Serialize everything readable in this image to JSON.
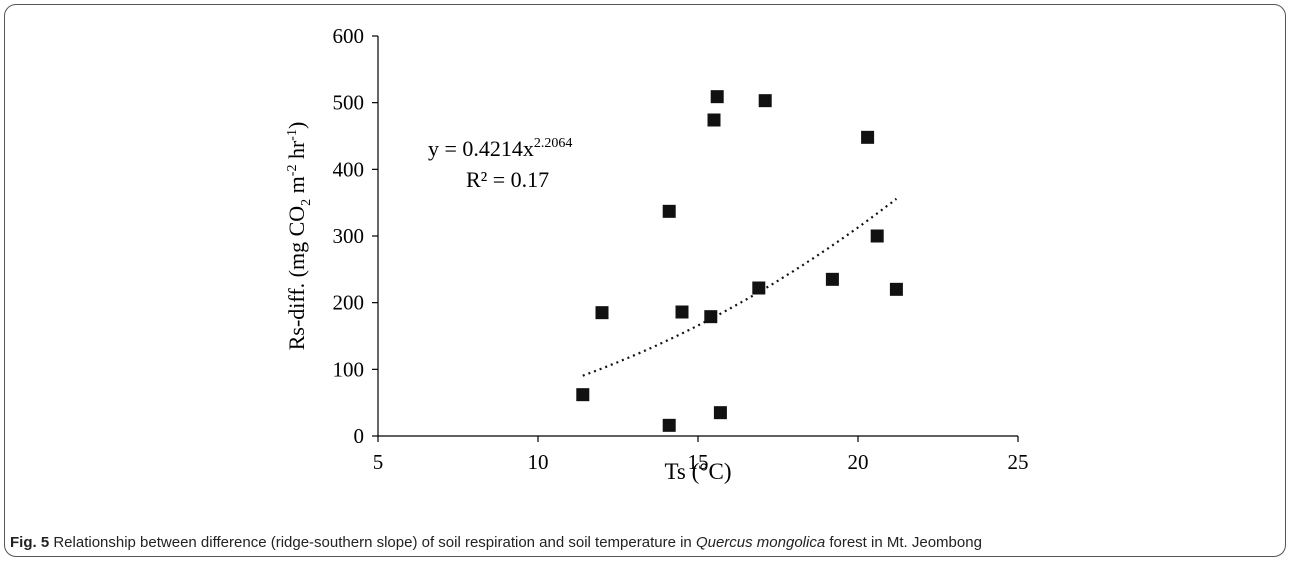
{
  "chart_data": {
    "type": "scatter",
    "xlabel": "Ts (°C)",
    "ylabel": {
      "prefix": "Rs-diff. (mg CO",
      "sub": "2",
      "mid": " m",
      "sup1": "-2",
      "mid2": " hr",
      "sup2": "-1",
      "suffix": ")"
    },
    "xlim": [
      5,
      25
    ],
    "ylim": [
      0,
      600
    ],
    "x_ticks": [
      5,
      10,
      15,
      20,
      25
    ],
    "y_ticks": [
      0,
      100,
      200,
      300,
      400,
      500,
      600
    ],
    "points": [
      {
        "x": 11.4,
        "y": 62
      },
      {
        "x": 12.0,
        "y": 185
      },
      {
        "x": 14.1,
        "y": 337
      },
      {
        "x": 14.1,
        "y": 16
      },
      {
        "x": 14.5,
        "y": 186
      },
      {
        "x": 15.4,
        "y": 179
      },
      {
        "x": 15.5,
        "y": 474
      },
      {
        "x": 15.6,
        "y": 509
      },
      {
        "x": 15.7,
        "y": 35
      },
      {
        "x": 16.9,
        "y": 222
      },
      {
        "x": 17.1,
        "y": 503
      },
      {
        "x": 19.2,
        "y": 235
      },
      {
        "x": 20.3,
        "y": 448
      },
      {
        "x": 20.6,
        "y": 300
      },
      {
        "x": 21.2,
        "y": 220
      }
    ],
    "trendline": {
      "type": "power",
      "a": 0.4214,
      "b": 2.2064,
      "x_range": [
        11.4,
        21.2
      ],
      "equation_base": "y = 0.4214x",
      "equation_exponent": "2.2064",
      "r2_label": "R² = 0.17"
    },
    "marker": "square",
    "grid": false,
    "legend": "none"
  },
  "caption": {
    "label": "Fig. 5",
    "text_before": " Relationship between difference (ridge-southern slope) of soil respiration and soil temperature in ",
    "species": "Quercus mongolica",
    "text_after": " forest in Mt. Jeombong"
  },
  "colors": {
    "marker": "#111111",
    "axis": "#000000",
    "trendline": "#111111",
    "frame": "#555555"
  }
}
